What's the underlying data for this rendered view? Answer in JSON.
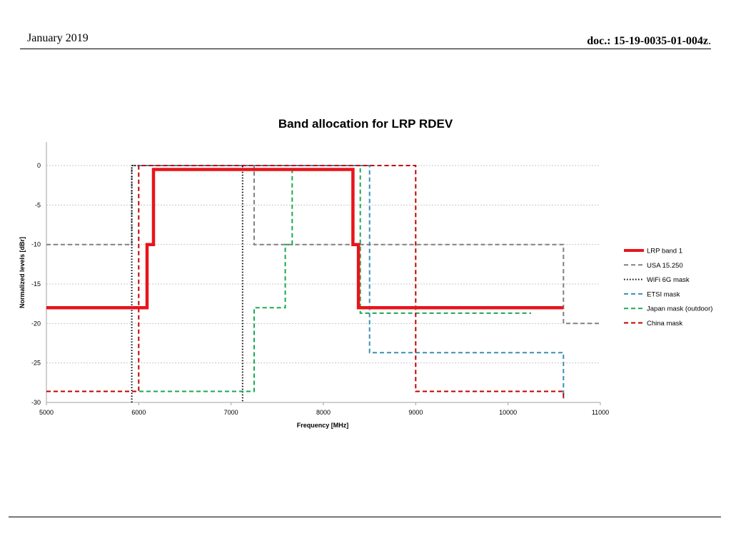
{
  "header": {
    "date": "January 2019",
    "doc_number": "doc.: 15-19-0035-01-004z",
    "doc_suffix": "."
  },
  "chart_data": {
    "type": "line",
    "title": "Band allocation for LRP RDEV",
    "xlabel": "Frequency [MHz]",
    "ylabel": "Normalized levels [dBr]",
    "xlim": [
      5000,
      11000
    ],
    "ylim": [
      -30,
      0
    ],
    "xticks": [
      5000,
      6000,
      7000,
      8000,
      9000,
      10000,
      11000
    ],
    "yticks": [
      0,
      -5,
      -10,
      -15,
      -20,
      -25,
      -30
    ],
    "grid": true,
    "legend_position": "right",
    "series": [
      {
        "name": "LRP band 1",
        "color": "#e8141c",
        "style": "solid",
        "points": [
          [
            5000,
            -18
          ],
          [
            6090,
            -18
          ],
          [
            6090,
            -10
          ],
          [
            6160,
            -10
          ],
          [
            6160,
            -0.5
          ],
          [
            8320,
            -0.5
          ],
          [
            8320,
            -10
          ],
          [
            8380,
            -10
          ],
          [
            8380,
            -18
          ],
          [
            10600,
            -18
          ]
        ]
      },
      {
        "name": "USA 15.250",
        "color": "#808080",
        "style": "dashed",
        "points": [
          [
            5000,
            -10
          ],
          [
            5925,
            -10
          ],
          [
            5925,
            0
          ],
          [
            7250,
            0
          ],
          [
            7250,
            -10
          ],
          [
            10600,
            -10
          ],
          [
            10600,
            -20
          ],
          [
            11000,
            -20
          ]
        ]
      },
      {
        "name": "WiFi 6G mask",
        "color": "#000000",
        "style": "dotted",
        "points": [
          [
            5925,
            -30
          ],
          [
            5925,
            0
          ],
          [
            7125,
            0
          ],
          [
            7125,
            -30
          ]
        ]
      },
      {
        "name": "ETSI mask",
        "color": "#3a8fb7",
        "style": "dashed",
        "points": [
          [
            6000,
            0
          ],
          [
            8500,
            0
          ],
          [
            8500,
            -23.7
          ],
          [
            10600,
            -23.7
          ],
          [
            10600,
            -29.5
          ]
        ]
      },
      {
        "name": "Japan mask (outdoor)",
        "color": "#1aaa50",
        "style": "dashed",
        "points": [
          [
            5000,
            -28.6
          ],
          [
            7250,
            -28.6
          ],
          [
            7250,
            -18
          ],
          [
            7587,
            -18
          ],
          [
            7587,
            -10
          ],
          [
            7662,
            -10
          ],
          [
            7662,
            0
          ],
          [
            8400,
            0
          ],
          [
            8400,
            -18.7
          ],
          [
            10250,
            -18.7
          ]
        ]
      },
      {
        "name": "China mask",
        "color": "#c00000",
        "style": "dashed",
        "points": [
          [
            5000,
            -28.6
          ],
          [
            6000,
            -28.6
          ],
          [
            6000,
            0
          ],
          [
            9000,
            0
          ],
          [
            9000,
            -28.6
          ],
          [
            10600,
            -28.6
          ],
          [
            10600,
            -29.5
          ]
        ]
      }
    ]
  }
}
